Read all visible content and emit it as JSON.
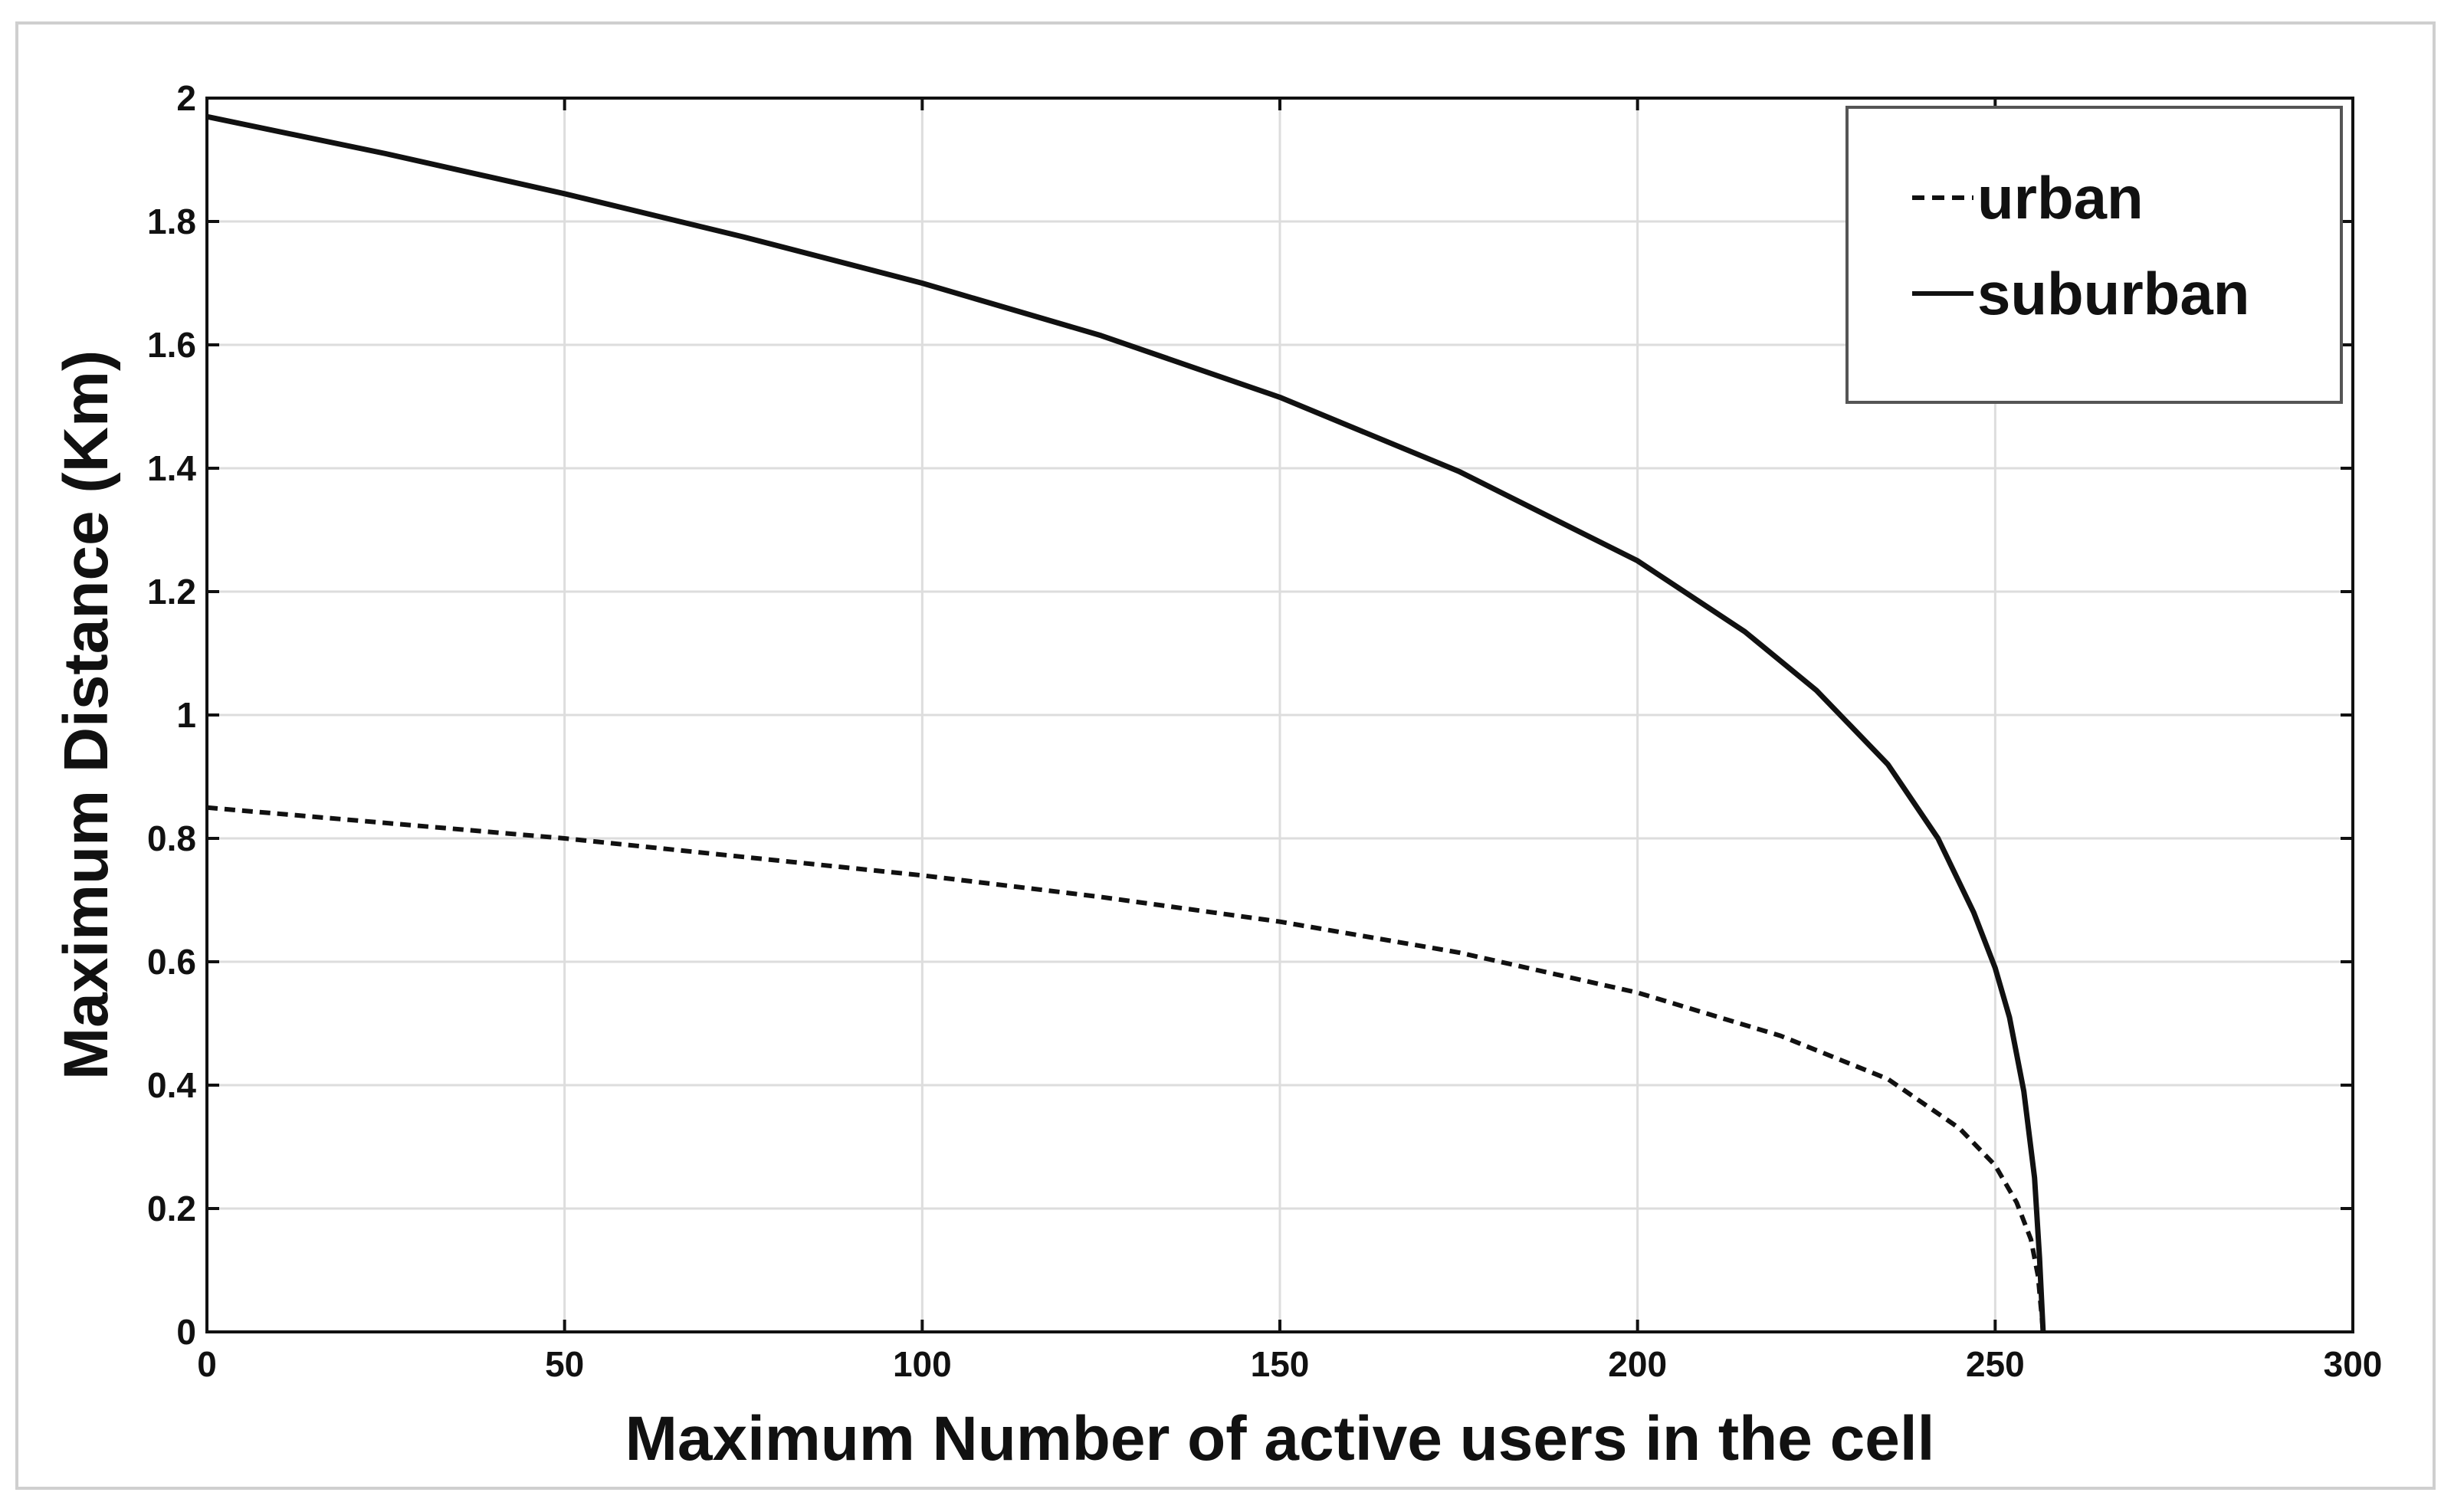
{
  "chart_data": {
    "type": "line",
    "title": "",
    "xlabel": "Maximum Number of active users in the cell",
    "ylabel": "Maximum Distance (Km)",
    "xlim": [
      0,
      300
    ],
    "ylim": [
      0,
      2
    ],
    "xticks": [
      0,
      50,
      100,
      150,
      200,
      250,
      300
    ],
    "yticks": [
      0,
      0.2,
      0.4,
      0.6,
      0.8,
      1,
      1.2,
      1.4,
      1.6,
      1.8,
      2
    ],
    "xtick_labels": [
      "0",
      "50",
      "100",
      "150",
      "200",
      "250",
      "300"
    ],
    "ytick_labels": [
      "0",
      "0.2",
      "0.4",
      "0.6",
      "0.8",
      "1",
      "1.2",
      "1.4",
      "1.6",
      "1.8",
      "2"
    ],
    "grid": true,
    "legend_position": "top-right",
    "series": [
      {
        "name": "urban",
        "line_style": "dashed",
        "color": "#111111",
        "x": [
          0,
          25,
          50,
          75,
          100,
          125,
          150,
          175,
          200,
          220,
          235,
          245,
          250,
          253,
          255,
          256,
          256.7
        ],
        "y": [
          0.85,
          0.825,
          0.8,
          0.77,
          0.74,
          0.705,
          0.665,
          0.615,
          0.55,
          0.48,
          0.41,
          0.33,
          0.27,
          0.21,
          0.15,
          0.09,
          0.0
        ]
      },
      {
        "name": "suburban",
        "line_style": "solid",
        "color": "#111111",
        "x": [
          0,
          25,
          50,
          75,
          100,
          125,
          150,
          175,
          200,
          215,
          225,
          235,
          242,
          247,
          250,
          252,
          254,
          255.5,
          256.2,
          256.7
        ],
        "y": [
          1.97,
          1.91,
          1.845,
          1.775,
          1.7,
          1.615,
          1.515,
          1.395,
          1.25,
          1.135,
          1.04,
          0.92,
          0.8,
          0.68,
          0.59,
          0.51,
          0.39,
          0.25,
          0.12,
          0.0
        ]
      }
    ]
  }
}
